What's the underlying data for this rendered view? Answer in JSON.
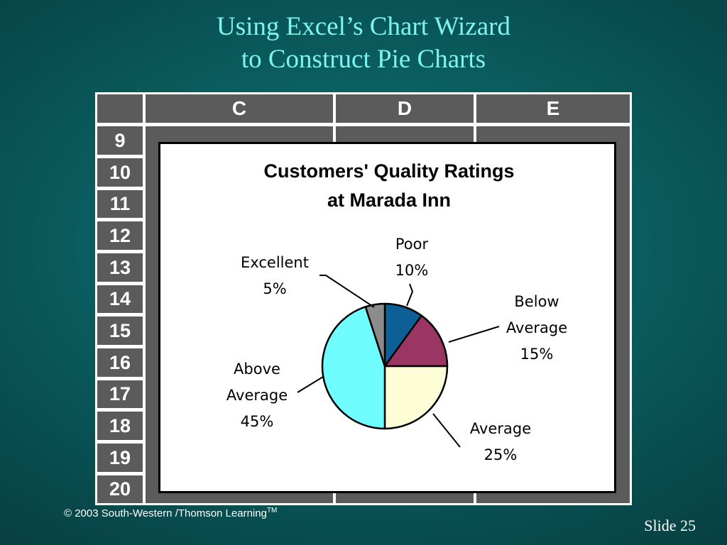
{
  "slide": {
    "title_line_1": "Using Excel’s Chart Wizard",
    "title_line_2": "to Construct Pie Charts",
    "copyright": "© 2003  South-Western /Thomson Learning",
    "trademark": "TM",
    "slide_label": "Slide",
    "slide_number": "25"
  },
  "spreadsheet": {
    "columns": [
      "C",
      "D",
      "E"
    ],
    "rows": [
      "9",
      "10",
      "11",
      "12",
      "13",
      "14",
      "15",
      "16",
      "17",
      "18",
      "19",
      "20"
    ],
    "cell_color": "#5b5b5b",
    "gridline_color": "#ffffff"
  },
  "chart_data": {
    "type": "pie",
    "title_line_1": "Customers' Quality Ratings",
    "title_line_2": "at Marada Inn",
    "slices": [
      {
        "label_lines": [
          "Poor",
          "10%"
        ],
        "value": 10,
        "color": "#0e5f96"
      },
      {
        "label_lines": [
          "Below",
          "Average",
          "15%"
        ],
        "value": 15,
        "color": "#9b3563"
      },
      {
        "label_lines": [
          "Average",
          "25%"
        ],
        "value": 25,
        "color": "#fdfed6"
      },
      {
        "label_lines": [
          "Above",
          "Average",
          "45%"
        ],
        "value": 45,
        "color": "#6ffdff"
      },
      {
        "label_lines": [
          "Excellent",
          "5%"
        ],
        "value": 5,
        "color": "#8c8c8c"
      }
    ]
  }
}
